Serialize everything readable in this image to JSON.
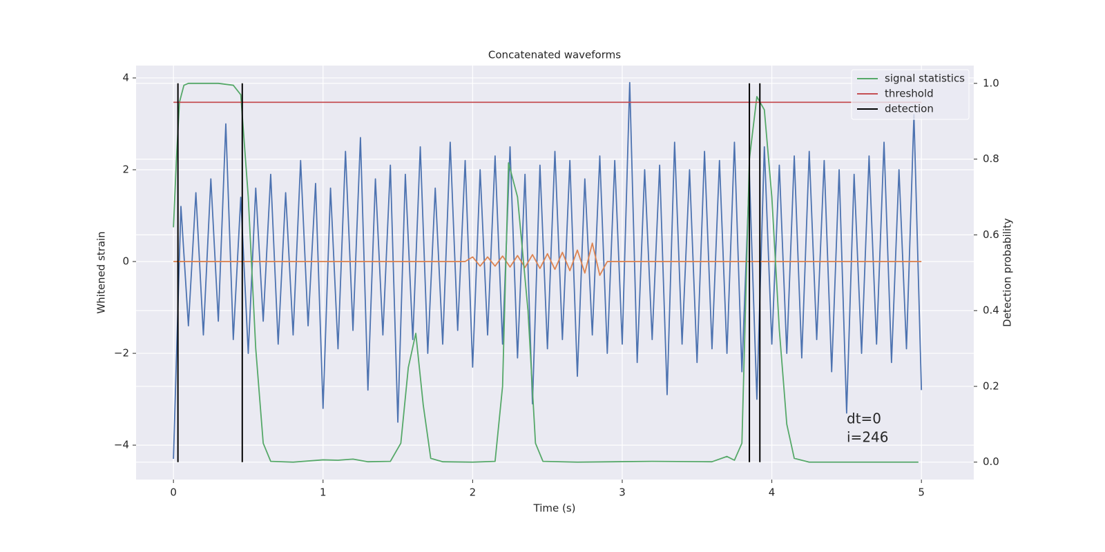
{
  "chart_data": {
    "type": "line",
    "title": "Concatenated waveforms",
    "xlabel": "Time (s)",
    "ylabel": "Whitened strain",
    "y2label": "Detection probability",
    "xlim": [
      -0.25,
      5.35
    ],
    "ylim": [
      -4.75,
      4.27
    ],
    "y2lim": [
      -0.046,
      1.047
    ],
    "xticks": [
      0,
      1,
      2,
      3,
      4,
      5
    ],
    "yticks": [
      {
        "value": -4,
        "label": "−4"
      },
      {
        "value": -2,
        "label": "−2"
      },
      0,
      2,
      4
    ],
    "y2ticks": [
      {
        "value": 0,
        "label": "0.0"
      },
      0.2,
      0.4,
      0.6,
      0.8,
      {
        "value": 1,
        "label": "1.0"
      }
    ],
    "grid": true,
    "legend": "upper right",
    "annotations": [
      "dt=0",
      "i=246"
    ],
    "series": [
      {
        "color": "#4c72b0",
        "x": [
          0,
          0.05,
          0.1,
          0.15,
          0.2,
          0.25,
          0.3,
          0.35,
          0.4,
          0.45,
          0.5,
          0.55,
          0.6,
          0.65,
          0.7,
          0.75,
          0.8,
          0.85,
          0.9,
          0.95,
          1,
          1.05,
          1.1,
          1.15,
          1.2,
          1.25,
          1.3,
          1.35,
          1.4,
          1.45,
          1.5,
          1.55,
          1.6,
          1.65,
          1.7,
          1.75,
          1.8,
          1.85,
          1.9,
          1.95,
          2,
          2.05,
          2.1,
          2.15,
          2.2,
          2.25,
          2.3,
          2.35,
          2.4,
          2.45,
          2.5,
          2.55,
          2.6,
          2.65,
          2.7,
          2.75,
          2.8,
          2.85,
          2.9,
          2.95,
          3,
          3.05,
          3.1,
          3.15,
          3.2,
          3.25,
          3.3,
          3.35,
          3.4,
          3.45,
          3.5,
          3.55,
          3.6,
          3.65,
          3.7,
          3.75,
          3.8,
          3.85,
          3.9,
          3.95,
          4,
          4.05,
          4.1,
          4.15,
          4.2,
          4.25,
          4.3,
          4.35,
          4.4,
          4.45,
          4.5,
          4.55,
          4.6,
          4.65,
          4.7,
          4.75,
          4.8,
          4.85,
          4.9,
          4.95,
          5
        ],
        "values": [
          -4.3,
          1.2,
          -1.4,
          1.5,
          -1.6,
          1.8,
          -1.3,
          3.0,
          -1.7,
          1.4,
          -2.0,
          1.6,
          -1.3,
          1.9,
          -1.8,
          1.5,
          -1.6,
          2.2,
          -1.4,
          1.7,
          -3.2,
          1.6,
          -1.9,
          2.4,
          -1.5,
          2.7,
          -2.8,
          1.8,
          -1.6,
          2.1,
          -3.5,
          1.9,
          -1.7,
          2.5,
          -2.0,
          1.6,
          -1.8,
          2.6,
          -1.5,
          2.2,
          -2.3,
          2.0,
          -1.6,
          2.3,
          -1.8,
          2.5,
          -2.1,
          1.9,
          -3.1,
          2.1,
          -1.9,
          2.4,
          -1.7,
          2.2,
          -2.5,
          1.8,
          -1.6,
          2.3,
          -2.0,
          2.2,
          -1.8,
          3.9,
          -2.2,
          2.0,
          -1.7,
          2.1,
          -2.9,
          2.6,
          -1.8,
          2.0,
          -2.2,
          2.4,
          -1.9,
          2.2,
          -2.0,
          2.6,
          -2.4,
          1.9,
          -3.0,
          2.5,
          -1.8,
          2.1,
          -2.0,
          2.3,
          -2.1,
          2.4,
          -1.7,
          2.2,
          -2.4,
          2.0,
          -3.3,
          1.9,
          -2.0,
          2.3,
          -1.8,
          2.6,
          -2.2,
          2.0,
          -1.9,
          3.2,
          -2.8
        ]
      },
      {
        "color": "#dd8452",
        "x": [
          0,
          1.95,
          2,
          2.05,
          2.1,
          2.15,
          2.2,
          2.25,
          2.3,
          2.35,
          2.4,
          2.45,
          2.5,
          2.55,
          2.6,
          2.65,
          2.7,
          2.75,
          2.8,
          2.85,
          2.9,
          5
        ],
        "values": [
          0,
          0,
          0.1,
          -0.1,
          0.1,
          -0.1,
          0.12,
          -0.12,
          0.13,
          -0.13,
          0.15,
          -0.15,
          0.17,
          -0.17,
          0.2,
          -0.2,
          0.25,
          -0.25,
          0.4,
          -0.3,
          0,
          0
        ]
      },
      {
        "name": "signal statistics",
        "color": "#55a868",
        "axis": "y2",
        "x": [
          0,
          0.02,
          0.04,
          0.07,
          0.1,
          0.2,
          0.3,
          0.4,
          0.45,
          0.5,
          0.55,
          0.6,
          0.65,
          0.8,
          1.0,
          1.1,
          1.2,
          1.3,
          1.45,
          1.52,
          1.57,
          1.62,
          1.67,
          1.72,
          1.8,
          2.0,
          2.15,
          2.2,
          2.24,
          2.3,
          2.37,
          2.42,
          2.47,
          2.7,
          3.2,
          3.6,
          3.7,
          3.75,
          3.8,
          3.85,
          3.9,
          3.95,
          4.0,
          4.05,
          4.1,
          4.15,
          4.25,
          4.98
        ],
        "values": [
          0.62,
          0.8,
          0.95,
          0.995,
          1.0,
          1.0,
          1.0,
          0.995,
          0.97,
          0.7,
          0.3,
          0.05,
          0.002,
          0.0,
          0.006,
          0.005,
          0.008,
          0.001,
          0.002,
          0.05,
          0.25,
          0.34,
          0.15,
          0.01,
          0.001,
          0.0,
          0.002,
          0.2,
          0.79,
          0.7,
          0.4,
          0.05,
          0.002,
          0.0,
          0.002,
          0.001,
          0.015,
          0.005,
          0.05,
          0.8,
          0.965,
          0.93,
          0.7,
          0.35,
          0.1,
          0.01,
          0.0,
          0.0
        ]
      },
      {
        "name": "threshold",
        "color": "#c44e52",
        "axis": "y2",
        "x": [
          0,
          5
        ],
        "values": [
          0.95,
          0.95
        ]
      },
      {
        "name": "detection",
        "color": "#000000",
        "axis": "y2",
        "type": "vline",
        "x": [
          0.03,
          0.46,
          3.85,
          3.92
        ],
        "span": [
          0,
          1
        ]
      }
    ]
  }
}
